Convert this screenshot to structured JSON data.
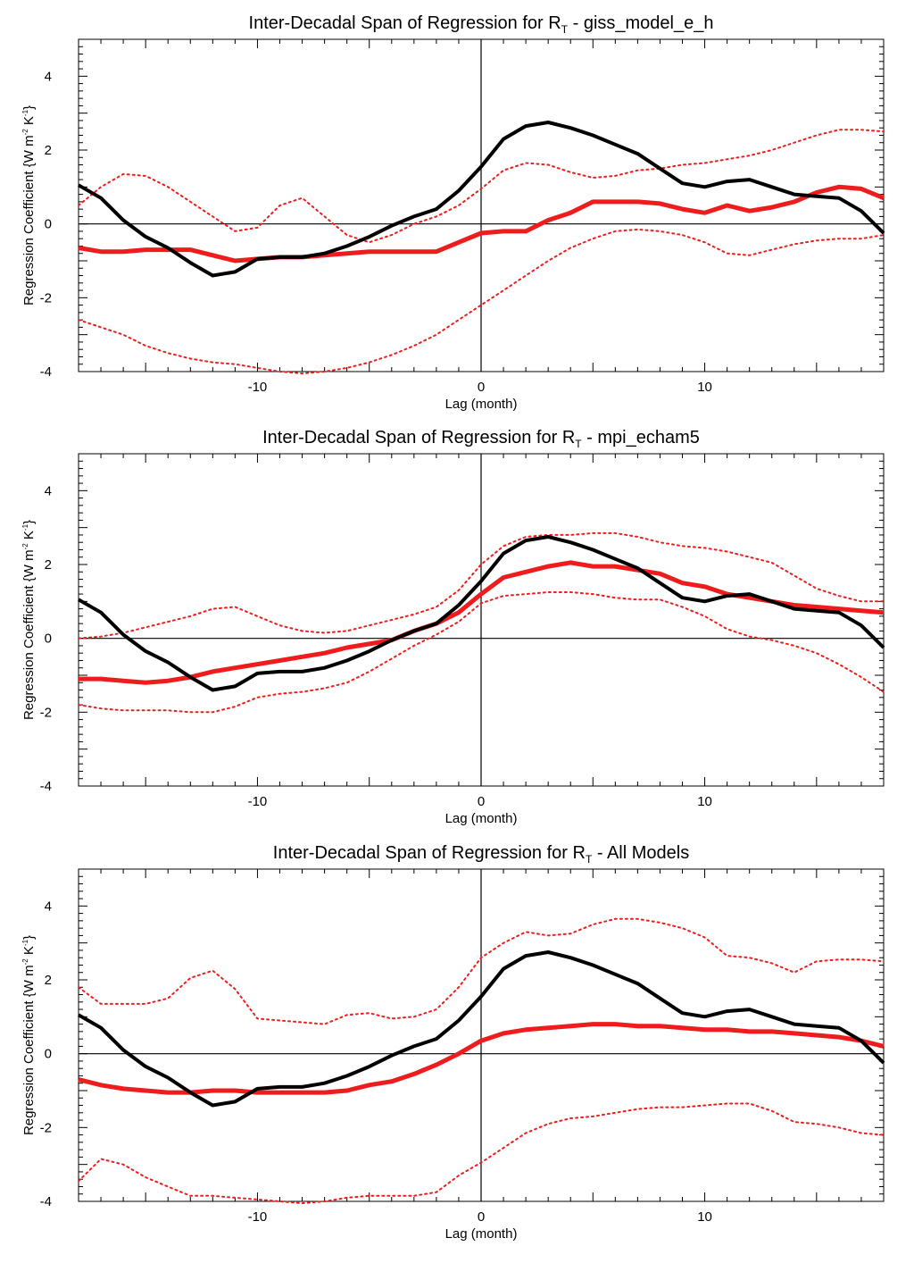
{
  "chart_data": [
    {
      "type": "line",
      "title": "Inter-Decadal Span of Regression for R",
      "title_sub": "T",
      "title_suffix": " - giss_model_e_h",
      "xlabel": "Lag (month)",
      "ylabel": "Regression Coefficient {W m",
      "ylabel_sup1": "-2",
      "ylabel_mid": " K",
      "ylabel_sup2": "-1",
      "ylabel_end": "}",
      "xlim": [
        -18,
        18
      ],
      "ylim": [
        -4,
        5
      ],
      "xticks": [
        -10,
        0,
        10
      ],
      "yticks": [
        -4,
        -2,
        0,
        2,
        4
      ],
      "x": [
        -18,
        -17,
        -16,
        -15,
        -14,
        -13,
        -12,
        -11,
        -10,
        -9,
        -8,
        -7,
        -6,
        -5,
        -4,
        -3,
        -2,
        -1,
        0,
        1,
        2,
        3,
        4,
        5,
        6,
        7,
        8,
        9,
        10,
        11,
        12,
        13,
        14,
        15,
        16,
        17,
        18
      ],
      "series": [
        {
          "name": "",
          "color": "#000000",
          "style": "solid",
          "width": 4,
          "values": [
            1.05,
            0.7,
            0.1,
            -0.35,
            -0.65,
            -1.05,
            -1.4,
            -1.3,
            -0.95,
            -0.9,
            -0.9,
            -0.8,
            -0.6,
            -0.35,
            -0.05,
            0.2,
            0.4,
            0.9,
            1.55,
            2.3,
            2.65,
            2.75,
            2.6,
            2.4,
            2.15,
            1.9,
            1.5,
            1.1,
            1.0,
            1.15,
            1.2,
            1.0,
            0.8,
            0.75,
            0.7,
            0.35,
            -0.25
          ]
        },
        {
          "name": "",
          "color": "#ee1c1c",
          "style": "solid",
          "width": 5,
          "values": [
            -0.65,
            -0.75,
            -0.75,
            -0.7,
            -0.7,
            -0.7,
            -0.85,
            -1.0,
            -0.95,
            -0.9,
            -0.9,
            -0.85,
            -0.8,
            -0.75,
            -0.75,
            -0.75,
            -0.75,
            -0.5,
            -0.25,
            -0.2,
            -0.2,
            0.1,
            0.3,
            0.6,
            0.6,
            0.6,
            0.55,
            0.4,
            0.3,
            0.5,
            0.35,
            0.45,
            0.6,
            0.85,
            1.0,
            0.95,
            0.7
          ]
        },
        {
          "name": "",
          "color": "#ee1c1c",
          "style": "dotted",
          "width": 2,
          "values": [
            0.5,
            1.0,
            1.35,
            1.3,
            1.0,
            0.6,
            0.2,
            -0.2,
            -0.1,
            0.5,
            0.7,
            0.2,
            -0.3,
            -0.5,
            -0.3,
            0.0,
            0.2,
            0.5,
            0.95,
            1.45,
            1.65,
            1.6,
            1.4,
            1.25,
            1.3,
            1.45,
            1.5,
            1.6,
            1.65,
            1.75,
            1.85,
            2.0,
            2.2,
            2.4,
            2.55,
            2.55,
            2.5
          ]
        },
        {
          "name": "",
          "color": "#ee1c1c",
          "style": "dotted",
          "width": 2,
          "values": [
            -2.6,
            -2.8,
            -3.0,
            -3.3,
            -3.5,
            -3.65,
            -3.75,
            -3.8,
            -3.9,
            -4.0,
            -4.05,
            -4.0,
            -3.9,
            -3.75,
            -3.55,
            -3.3,
            -3.0,
            -2.6,
            -2.2,
            -1.8,
            -1.4,
            -1.0,
            -0.65,
            -0.4,
            -0.2,
            -0.15,
            -0.2,
            -0.3,
            -0.5,
            -0.8,
            -0.85,
            -0.7,
            -0.55,
            -0.45,
            -0.4,
            -0.4,
            -0.3
          ]
        }
      ]
    },
    {
      "type": "line",
      "title": "Inter-Decadal Span of Regression for R",
      "title_sub": "T",
      "title_suffix": " - mpi_echam5",
      "xlabel": "Lag (month)",
      "ylabel": "Regression Coefficient {W m",
      "ylabel_sup1": "-2",
      "ylabel_mid": " K",
      "ylabel_sup2": "-1",
      "ylabel_end": "}",
      "xlim": [
        -18,
        18
      ],
      "ylim": [
        -4,
        5
      ],
      "xticks": [
        -10,
        0,
        10
      ],
      "yticks": [
        -4,
        -2,
        0,
        2,
        4
      ],
      "x": [
        -18,
        -17,
        -16,
        -15,
        -14,
        -13,
        -12,
        -11,
        -10,
        -9,
        -8,
        -7,
        -6,
        -5,
        -4,
        -3,
        -2,
        -1,
        0,
        1,
        2,
        3,
        4,
        5,
        6,
        7,
        8,
        9,
        10,
        11,
        12,
        13,
        14,
        15,
        16,
        17,
        18
      ],
      "series": [
        {
          "name": "",
          "color": "#000000",
          "style": "solid",
          "width": 4,
          "values": [
            1.05,
            0.7,
            0.1,
            -0.35,
            -0.65,
            -1.05,
            -1.4,
            -1.3,
            -0.95,
            -0.9,
            -0.9,
            -0.8,
            -0.6,
            -0.35,
            -0.05,
            0.2,
            0.4,
            0.9,
            1.55,
            2.3,
            2.65,
            2.75,
            2.6,
            2.4,
            2.15,
            1.9,
            1.5,
            1.1,
            1.0,
            1.15,
            1.2,
            1.0,
            0.8,
            0.75,
            0.7,
            0.35,
            -0.25
          ]
        },
        {
          "name": "",
          "color": "#ee1c1c",
          "style": "solid",
          "width": 5,
          "values": [
            -1.1,
            -1.1,
            -1.15,
            -1.2,
            -1.15,
            -1.05,
            -0.9,
            -0.8,
            -0.7,
            -0.6,
            -0.5,
            -0.4,
            -0.25,
            -0.15,
            -0.05,
            0.2,
            0.4,
            0.7,
            1.2,
            1.65,
            1.8,
            1.95,
            2.05,
            1.95,
            1.95,
            1.85,
            1.75,
            1.5,
            1.4,
            1.2,
            1.1,
            1.0,
            0.9,
            0.85,
            0.8,
            0.75,
            0.7
          ]
        },
        {
          "name": "",
          "color": "#ee1c1c",
          "style": "dotted",
          "width": 2,
          "values": [
            0.0,
            0.05,
            0.15,
            0.3,
            0.45,
            0.6,
            0.8,
            0.85,
            0.6,
            0.35,
            0.2,
            0.15,
            0.2,
            0.35,
            0.5,
            0.65,
            0.85,
            1.3,
            2.0,
            2.5,
            2.75,
            2.8,
            2.8,
            2.85,
            2.85,
            2.75,
            2.6,
            2.5,
            2.45,
            2.35,
            2.2,
            2.05,
            1.7,
            1.35,
            1.15,
            1.0,
            1.0
          ]
        },
        {
          "name": "",
          "color": "#ee1c1c",
          "style": "dotted",
          "width": 2,
          "values": [
            -1.8,
            -1.9,
            -1.95,
            -1.95,
            -1.95,
            -2.0,
            -2.0,
            -1.85,
            -1.6,
            -1.5,
            -1.45,
            -1.35,
            -1.2,
            -0.9,
            -0.55,
            -0.2,
            0.1,
            0.45,
            0.95,
            1.15,
            1.2,
            1.25,
            1.25,
            1.2,
            1.1,
            1.05,
            1.05,
            0.85,
            0.6,
            0.25,
            0.05,
            -0.05,
            -0.2,
            -0.4,
            -0.7,
            -1.05,
            -1.45
          ]
        }
      ]
    },
    {
      "type": "line",
      "title": "Inter-Decadal Span of Regression for R",
      "title_sub": "T",
      "title_suffix": " - All Models",
      "xlabel": "Lag (month)",
      "ylabel": "Regression Coefficient {W m",
      "ylabel_sup1": "-2",
      "ylabel_mid": " K",
      "ylabel_sup2": "-1",
      "ylabel_end": "}",
      "xlim": [
        -18,
        18
      ],
      "ylim": [
        -4,
        5
      ],
      "xticks": [
        -10,
        0,
        10
      ],
      "yticks": [
        -4,
        -2,
        0,
        2,
        4
      ],
      "x": [
        -18,
        -17,
        -16,
        -15,
        -14,
        -13,
        -12,
        -11,
        -10,
        -9,
        -8,
        -7,
        -6,
        -5,
        -4,
        -3,
        -2,
        -1,
        0,
        1,
        2,
        3,
        4,
        5,
        6,
        7,
        8,
        9,
        10,
        11,
        12,
        13,
        14,
        15,
        16,
        17,
        18
      ],
      "series": [
        {
          "name": "",
          "color": "#000000",
          "style": "solid",
          "width": 4,
          "values": [
            1.05,
            0.7,
            0.1,
            -0.35,
            -0.65,
            -1.05,
            -1.4,
            -1.3,
            -0.95,
            -0.9,
            -0.9,
            -0.8,
            -0.6,
            -0.35,
            -0.05,
            0.2,
            0.4,
            0.9,
            1.55,
            2.3,
            2.65,
            2.75,
            2.6,
            2.4,
            2.15,
            1.9,
            1.5,
            1.1,
            1.0,
            1.15,
            1.2,
            1.0,
            0.8,
            0.75,
            0.7,
            0.35,
            -0.25
          ]
        },
        {
          "name": "",
          "color": "#ee1c1c",
          "style": "solid",
          "width": 5,
          "values": [
            -0.7,
            -0.85,
            -0.95,
            -1.0,
            -1.05,
            -1.05,
            -1.0,
            -1.0,
            -1.05,
            -1.05,
            -1.05,
            -1.05,
            -1.0,
            -0.85,
            -0.75,
            -0.55,
            -0.3,
            0.0,
            0.35,
            0.55,
            0.65,
            0.7,
            0.75,
            0.8,
            0.8,
            0.75,
            0.75,
            0.7,
            0.65,
            0.65,
            0.6,
            0.6,
            0.55,
            0.5,
            0.45,
            0.35,
            0.2
          ]
        },
        {
          "name": "",
          "color": "#ee1c1c",
          "style": "dotted",
          "width": 2,
          "values": [
            1.8,
            1.35,
            1.35,
            1.35,
            1.5,
            2.05,
            2.25,
            1.75,
            0.95,
            0.9,
            0.85,
            0.8,
            1.05,
            1.1,
            0.95,
            1.0,
            1.2,
            1.8,
            2.6,
            3.0,
            3.3,
            3.2,
            3.25,
            3.5,
            3.65,
            3.65,
            3.55,
            3.4,
            3.15,
            2.65,
            2.6,
            2.45,
            2.2,
            2.5,
            2.55,
            2.55,
            2.5
          ]
        },
        {
          "name": "",
          "color": "#ee1c1c",
          "style": "dotted",
          "width": 2,
          "values": [
            -3.45,
            -2.85,
            -3.0,
            -3.35,
            -3.6,
            -3.85,
            -3.85,
            -3.9,
            -3.95,
            -4.0,
            -4.05,
            -4.0,
            -3.9,
            -3.85,
            -3.85,
            -3.85,
            -3.75,
            -3.3,
            -2.95,
            -2.55,
            -2.15,
            -1.9,
            -1.75,
            -1.7,
            -1.6,
            -1.5,
            -1.45,
            -1.45,
            -1.4,
            -1.35,
            -1.35,
            -1.55,
            -1.85,
            -1.9,
            -2.0,
            -2.15,
            -2.2
          ]
        }
      ]
    }
  ]
}
